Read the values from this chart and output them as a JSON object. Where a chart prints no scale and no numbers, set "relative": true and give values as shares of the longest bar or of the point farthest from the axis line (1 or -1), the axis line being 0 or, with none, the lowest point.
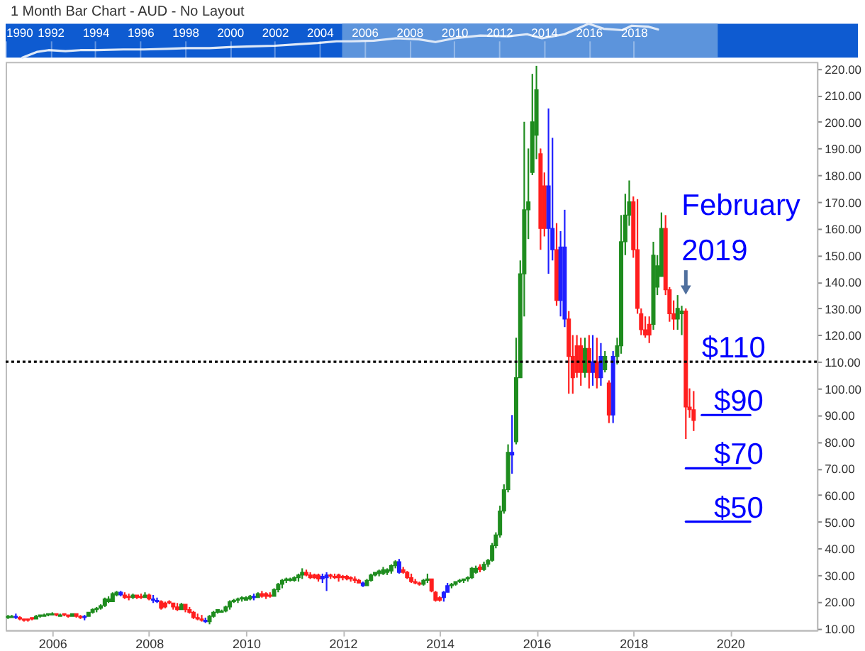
{
  "chart_data": [
    {
      "type": "line",
      "title": "1 Month Bar Chart - AUD - No Layout",
      "relative": true,
      "x": [
        "1990-10",
        "1991-06",
        "1991-12",
        "1992-09",
        "1993-05",
        "1994-02",
        "1995-04",
        "1996-03",
        "1997-03",
        "1998-02",
        "1999-02",
        "2000-01",
        "2001-01",
        "2002-01",
        "2002-12",
        "2003-12",
        "2004-10",
        "2005-06",
        "2006-06",
        "2007-06",
        "2008-06",
        "2009-03",
        "2010-01",
        "2011-03",
        "2012-06",
        "2013-04",
        "2013-12",
        "2014-12",
        "2015-06",
        "2016-01",
        "2016-09",
        "2017-07",
        "2017-12",
        "2018-09",
        "2019-02"
      ],
      "series": [
        {
          "color": "#dfe9f7",
          "values": [
            0,
            0.17,
            0.22,
            0.19,
            0.22,
            0.22,
            0.24,
            0.24,
            0.26,
            0.28,
            0.28,
            0.31,
            0.33,
            0.35,
            0.39,
            0.43,
            0.48,
            0.48,
            0.5,
            0.57,
            0.54,
            0.46,
            0.57,
            0.65,
            0.63,
            0.69,
            0.57,
            0.69,
            0.83,
            1,
            0.85,
            0.81,
            0.94,
            0.91,
            0.83
          ]
        }
      ],
      "xlim": [
        "1990-01",
        "2028-01"
      ],
      "xticks": [
        "1990",
        "1992",
        "1994",
        "1996",
        "1998",
        "2000",
        "2002",
        "2004",
        "2006",
        "2008",
        "2010",
        "2012",
        "2014",
        "2016",
        "2018"
      ],
      "bands": [
        {
          "axis": "x",
          "from": "2005-01",
          "to": "2021-10",
          "color": "#5c94dc"
        }
      ]
    },
    {
      "type": "candlestick",
      "x": [
        "2005-02",
        "2005-03",
        "2005-04",
        "2005-05",
        "2005-06",
        "2005-07",
        "2005-08",
        "2005-09",
        "2005-10",
        "2005-11",
        "2005-12",
        "2006-01",
        "2006-02",
        "2006-03",
        "2006-04",
        "2006-05",
        "2006-06",
        "2006-07",
        "2006-08",
        "2006-09",
        "2006-10",
        "2006-11",
        "2006-12",
        "2007-01",
        "2007-02",
        "2007-03",
        "2007-04",
        "2007-05",
        "2007-06",
        "2007-07",
        "2007-08",
        "2007-09",
        "2007-10",
        "2007-11",
        "2007-12",
        "2008-01",
        "2008-02",
        "2008-03",
        "2008-04",
        "2008-05",
        "2008-06",
        "2008-07",
        "2008-08",
        "2008-09",
        "2008-10",
        "2008-11",
        "2008-12",
        "2009-01",
        "2009-02",
        "2009-03",
        "2009-04",
        "2009-05",
        "2009-06",
        "2009-07",
        "2009-08",
        "2009-09",
        "2009-10",
        "2009-11",
        "2009-12",
        "2010-01",
        "2010-02",
        "2010-03",
        "2010-04",
        "2010-05",
        "2010-06",
        "2010-07",
        "2010-08",
        "2010-09",
        "2010-10",
        "2010-11",
        "2010-12",
        "2011-01",
        "2011-02",
        "2011-03",
        "2011-04",
        "2011-05",
        "2011-06",
        "2011-07",
        "2011-08",
        "2011-09",
        "2011-10",
        "2011-11",
        "2011-12",
        "2012-01",
        "2012-02",
        "2012-03",
        "2012-04",
        "2012-05",
        "2012-06",
        "2012-07",
        "2012-08",
        "2012-09",
        "2012-10",
        "2012-11",
        "2012-12",
        "2013-01",
        "2013-02",
        "2013-03",
        "2013-04",
        "2013-05",
        "2013-06",
        "2013-07",
        "2013-08",
        "2013-09",
        "2013-10",
        "2013-11",
        "2013-12",
        "2014-01",
        "2014-02",
        "2014-03",
        "2014-04",
        "2014-05",
        "2014-06",
        "2014-07",
        "2014-08",
        "2014-09",
        "2014-10",
        "2014-11",
        "2014-12",
        "2015-01",
        "2015-02",
        "2015-03",
        "2015-04",
        "2015-05",
        "2015-06",
        "2015-07",
        "2015-08",
        "2015-09",
        "2015-10",
        "2015-11",
        "2015-12",
        "2016-01",
        "2016-02",
        "2016-03",
        "2016-04",
        "2016-05",
        "2016-06",
        "2016-07",
        "2016-08",
        "2016-09",
        "2016-10",
        "2016-11",
        "2016-12",
        "2017-01",
        "2017-02",
        "2017-03",
        "2017-04",
        "2017-05",
        "2017-06",
        "2017-07",
        "2017-08",
        "2017-09",
        "2017-10",
        "2017-11",
        "2017-12",
        "2018-01",
        "2018-02",
        "2018-03",
        "2018-04",
        "2018-05",
        "2018-06",
        "2018-07",
        "2018-08",
        "2018-09",
        "2018-10",
        "2018-11",
        "2018-12",
        "2019-01",
        "2019-02",
        "2019-03",
        "2019-04"
      ],
      "ohlc": [
        [
          14,
          15,
          13.5,
          14.5
        ],
        [
          14,
          15,
          14,
          14.5
        ],
        [
          14.5,
          15.5,
          13.5,
          14
        ],
        [
          14,
          14.5,
          13,
          13.5
        ],
        [
          13.5,
          13.5,
          12.5,
          13
        ],
        [
          13.5,
          13.5,
          12.5,
          13
        ],
        [
          14,
          14,
          13,
          13.5
        ],
        [
          13.5,
          15,
          13.5,
          14.5
        ],
        [
          14.5,
          15,
          14,
          15
        ],
        [
          14.5,
          15.5,
          14.5,
          15
        ],
        [
          15,
          15.5,
          14.5,
          15.5
        ],
        [
          15,
          16,
          15,
          15.5
        ],
        [
          15.5,
          15.5,
          14.5,
          15
        ],
        [
          14.5,
          15.5,
          14.5,
          15
        ],
        [
          15.5,
          15.5,
          14.5,
          15
        ],
        [
          15,
          15,
          14,
          14.5
        ],
        [
          14.5,
          15.5,
          14.5,
          15.5
        ],
        [
          15.5,
          15.5,
          14,
          14.5
        ],
        [
          14.5,
          15,
          13.5,
          14
        ],
        [
          14.5,
          15,
          13,
          14
        ],
        [
          14.5,
          16,
          14.5,
          16
        ],
        [
          16,
          17.5,
          15.5,
          17
        ],
        [
          17,
          18,
          16,
          17.5
        ],
        [
          17.5,
          19,
          17,
          18.5
        ],
        [
          18.5,
          21.5,
          18,
          21
        ],
        [
          20,
          22,
          19.5,
          21
        ],
        [
          20,
          23.5,
          20,
          23
        ],
        [
          22.5,
          24,
          22,
          23.5
        ],
        [
          23.5,
          24,
          22,
          22.5
        ],
        [
          22.5,
          23.5,
          21,
          21.5
        ],
        [
          22,
          23,
          20.5,
          21.5
        ],
        [
          21.5,
          23,
          21,
          22.5
        ],
        [
          22.5,
          22.5,
          21,
          21.5
        ],
        [
          22,
          23,
          21,
          21.5
        ],
        [
          21.5,
          23.5,
          21.5,
          22.5
        ],
        [
          22.5,
          23,
          20.5,
          21
        ],
        [
          21,
          22.5,
          19.5,
          20.5
        ],
        [
          20.5,
          21.5,
          19.5,
          20
        ],
        [
          20,
          20.5,
          17,
          17.5
        ],
        [
          19.5,
          20,
          17.5,
          18
        ],
        [
          20,
          20.5,
          19,
          19.5
        ],
        [
          19.5,
          19.5,
          17,
          18
        ],
        [
          18,
          19.5,
          16.5,
          17
        ],
        [
          17,
          19.5,
          17,
          19
        ],
        [
          19,
          19,
          16,
          17
        ],
        [
          17,
          18,
          15.5,
          16
        ],
        [
          16,
          16.5,
          13.5,
          14
        ],
        [
          14,
          15.5,
          13,
          13.5
        ],
        [
          13.5,
          15,
          12.5,
          13
        ],
        [
          13,
          14,
          12,
          12.5
        ],
        [
          12.5,
          15,
          11.5,
          14.5
        ],
        [
          14.5,
          16.5,
          14,
          16
        ],
        [
          16,
          17,
          15.5,
          17
        ],
        [
          16,
          17,
          16,
          16.5
        ],
        [
          16.5,
          18.5,
          16,
          18
        ],
        [
          18,
          20.5,
          17,
          20
        ],
        [
          20,
          21,
          19.5,
          20.5
        ],
        [
          20.5,
          21.5,
          19.5,
          21
        ],
        [
          21,
          22,
          20,
          21.5
        ],
        [
          20.5,
          22,
          20.5,
          21.5
        ],
        [
          21,
          22.5,
          20.5,
          22
        ],
        [
          22,
          23,
          20.5,
          21.5
        ],
        [
          21.5,
          23.5,
          21.5,
          23
        ],
        [
          23,
          24,
          21.5,
          22
        ],
        [
          23,
          23.5,
          21,
          22
        ],
        [
          22.5,
          23.5,
          21.5,
          22
        ],
        [
          22,
          25,
          22,
          24.5
        ],
        [
          24.5,
          27,
          23.5,
          26.5
        ],
        [
          26.5,
          28.5,
          25,
          28
        ],
        [
          28,
          29,
          27,
          28.5
        ],
        [
          28,
          29,
          27.5,
          28.5
        ],
        [
          28,
          29.5,
          27.5,
          29
        ],
        [
          29,
          30.5,
          27.5,
          30
        ],
        [
          30,
          32.5,
          28.5,
          31
        ],
        [
          31,
          32,
          29.5,
          30
        ],
        [
          30,
          31,
          28.5,
          29
        ],
        [
          30,
          30.5,
          28.5,
          29
        ],
        [
          30,
          30.5,
          27.5,
          28.5
        ],
        [
          29.5,
          30.5,
          27,
          28.5
        ],
        [
          30,
          31,
          24,
          29
        ],
        [
          30,
          30.5,
          28.5,
          29.5
        ],
        [
          29.5,
          30.5,
          28.5,
          29
        ],
        [
          30,
          30.5,
          27.5,
          29
        ],
        [
          29.5,
          30,
          28,
          29
        ],
        [
          29.5,
          30,
          28,
          28.5
        ],
        [
          29,
          29.5,
          27.5,
          28.5
        ],
        [
          28.5,
          29.5,
          27,
          28
        ],
        [
          28,
          28.5,
          27,
          27
        ],
        [
          27,
          27.5,
          25.5,
          26
        ],
        [
          26,
          28.5,
          26,
          28
        ],
        [
          28,
          30.5,
          27.5,
          30
        ],
        [
          30,
          31,
          29.5,
          31
        ],
        [
          30.5,
          32,
          29.5,
          31.5
        ],
        [
          30.5,
          33,
          30,
          32
        ],
        [
          31,
          32.5,
          30,
          32
        ],
        [
          31.5,
          34,
          30.5,
          33.5
        ],
        [
          33.5,
          35.5,
          32.5,
          35
        ],
        [
          35,
          36,
          30.5,
          31
        ],
        [
          32,
          33,
          30.5,
          31
        ],
        [
          31,
          31.5,
          28.5,
          29
        ],
        [
          29,
          30.5,
          27,
          27.5
        ],
        [
          27.5,
          28.5,
          26.5,
          27
        ],
        [
          27,
          27.5,
          26,
          26.5
        ],
        [
          26.5,
          28.5,
          26,
          28
        ],
        [
          28,
          30.5,
          27,
          28.5
        ],
        [
          28.5,
          28.5,
          23.5,
          24
        ],
        [
          23.5,
          24,
          20,
          20.5
        ],
        [
          21.5,
          22,
          20,
          20.5
        ],
        [
          21.5,
          24,
          20,
          23.5
        ],
        [
          23.5,
          27,
          23.5,
          26
        ],
        [
          26,
          27,
          25,
          26.5
        ],
        [
          26.5,
          27.5,
          26,
          27.5
        ],
        [
          27.5,
          28.5,
          27,
          28
        ],
        [
          28,
          28.5,
          27,
          28.5
        ],
        [
          28.5,
          29.5,
          27.5,
          29
        ],
        [
          29,
          33,
          28.5,
          32.5
        ],
        [
          31,
          33.5,
          30.5,
          32.5
        ],
        [
          33,
          34,
          31,
          32
        ],
        [
          32,
          35,
          31.5,
          34
        ],
        [
          34,
          36,
          33,
          35.5
        ],
        [
          35.5,
          42,
          35,
          41
        ],
        [
          41,
          46,
          40,
          45
        ],
        [
          45,
          56,
          44,
          54
        ],
        [
          54,
          64,
          53,
          62
        ],
        [
          62,
          79,
          61,
          76
        ],
        [
          76,
          90,
          68,
          75
        ],
        [
          80,
          119,
          79,
          104
        ],
        [
          104,
          148,
          104,
          143
        ],
        [
          143,
          200,
          127,
          167
        ],
        [
          167,
          190,
          156,
          170
        ],
        [
          181,
          218,
          180,
          200
        ],
        [
          195,
          221,
          186,
          212
        ],
        [
          188,
          190,
          152,
          160
        ],
        [
          176,
          181,
          157,
          160
        ],
        [
          176,
          205,
          143,
          160
        ],
        [
          160,
          194,
          148,
          152
        ],
        [
          152,
          162,
          131,
          133
        ],
        [
          133,
          159,
          127,
          153
        ],
        [
          153,
          167,
          123,
          126
        ],
        [
          126,
          129,
          98,
          112
        ],
        [
          112,
          120,
          98,
          104
        ],
        [
          116,
          120,
          104,
          106
        ],
        [
          116,
          119,
          101,
          106
        ],
        [
          106,
          119,
          104,
          115
        ],
        [
          115,
          120,
          100,
          106
        ],
        [
          106,
          120,
          101,
          110
        ],
        [
          110,
          119,
          100,
          104
        ],
        [
          104,
          117,
          101,
          112
        ],
        [
          107,
          114,
          106,
          112
        ],
        [
          102,
          103,
          87,
          90
        ],
        [
          90,
          114,
          87,
          112
        ],
        [
          112,
          119,
          109,
          116
        ],
        [
          116,
          165,
          113,
          155
        ],
        [
          155,
          173,
          150,
          165
        ],
        [
          165,
          178,
          161,
          170
        ],
        [
          170,
          172,
          149,
          152
        ],
        [
          152,
          171,
          128,
          130
        ],
        [
          128,
          130,
          120,
          122
        ],
        [
          122,
          127,
          119,
          120
        ],
        [
          124,
          127,
          117,
          120
        ],
        [
          124,
          155,
          122,
          150
        ],
        [
          138,
          150,
          135,
          146
        ],
        [
          142,
          166,
          142,
          160
        ],
        [
          160,
          165,
          135,
          137
        ],
        [
          137,
          138,
          125,
          128
        ],
        [
          128,
          133,
          122,
          126
        ],
        [
          126,
          135,
          122,
          130
        ],
        [
          128,
          131,
          120,
          129
        ],
        [
          129,
          130,
          81,
          93
        ],
        [
          93,
          100,
          89,
          92
        ],
        [
          92,
          99,
          84,
          88
        ]
      ],
      "colors": [
        "#1e8c1e",
        "#1e8c1e",
        "#1e1eff",
        "#ff1e1e",
        "#ff1e1e",
        "#ff1e1e",
        "#ff1e1e",
        "#1e8c1e",
        "#1e8c1e",
        "#1e8c1e",
        "#1e8c1e",
        "#1e8c1e",
        "#ff1e1e",
        "#1e8c1e",
        "#ff1e1e",
        "#ff1e1e",
        "#1e8c1e",
        "#ff1e1e",
        "#ff1e1e",
        "#1e1eff",
        "#1e8c1e",
        "#1e8c1e",
        "#1e8c1e",
        "#1e8c1e",
        "#1e8c1e",
        "#1e8c1e",
        "#1e8c1e",
        "#1e8c1e",
        "#1e1eff",
        "#ff1e1e",
        "#ff1e1e",
        "#1e8c1e",
        "#ff1e1e",
        "#ff1e1e",
        "#1e8c1e",
        "#ff1e1e",
        "#1e1eff",
        "#1e1eff",
        "#ff1e1e",
        "#ff1e1e",
        "#ff1e1e",
        "#ff1e1e",
        "#ff1e1e",
        "#1e8c1e",
        "#ff1e1e",
        "#ff1e1e",
        "#ff1e1e",
        "#ff1e1e",
        "#ff1e1e",
        "#1e1eff",
        "#1e8c1e",
        "#1e8c1e",
        "#1e8c1e",
        "#1e8c1e",
        "#1e8c1e",
        "#1e8c1e",
        "#1e8c1e",
        "#1e8c1e",
        "#1e8c1e",
        "#1e8c1e",
        "#1e8c1e",
        "#1e1eff",
        "#1e8c1e",
        "#ff1e1e",
        "#ff1e1e",
        "#ff1e1e",
        "#1e8c1e",
        "#1e8c1e",
        "#1e8c1e",
        "#1e8c1e",
        "#1e8c1e",
        "#1e8c1e",
        "#1e8c1e",
        "#1e8c1e",
        "#ff1e1e",
        "#ff1e1e",
        "#ff1e1e",
        "#ff1e1e",
        "#1e1eff",
        "#1e1eff",
        "#ff1e1e",
        "#ff1e1e",
        "#ff1e1e",
        "#ff1e1e",
        "#ff1e1e",
        "#ff1e1e",
        "#ff1e1e",
        "#ff1e1e",
        "#1e1eff",
        "#1e8c1e",
        "#1e8c1e",
        "#1e8c1e",
        "#1e8c1e",
        "#1e8c1e",
        "#1e8c1e",
        "#1e8c1e",
        "#1e8c1e",
        "#1e1eff",
        "#ff1e1e",
        "#ff1e1e",
        "#ff1e1e",
        "#ff1e1e",
        "#ff1e1e",
        "#1e8c1e",
        "#1e8c1e",
        "#ff1e1e",
        "#ff1e1e",
        "#ff1e1e",
        "#1e1eff",
        "#1e1eff",
        "#1e8c1e",
        "#1e8c1e",
        "#1e8c1e",
        "#1e8c1e",
        "#1e8c1e",
        "#1e8c1e",
        "#1e8c1e",
        "#ff1e1e",
        "#1e8c1e",
        "#1e8c1e",
        "#1e8c1e",
        "#1e8c1e",
        "#1e8c1e",
        "#1e8c1e",
        "#1e8c1e",
        "#1e1eff",
        "#1e8c1e",
        "#1e8c1e",
        "#1e8c1e",
        "#1e8c1e",
        "#1e8c1e",
        "#1e8c1e",
        "#ff1e1e",
        "#ff1e1e",
        "#1e1eff",
        "#1e1eff",
        "#ff1e1e",
        "#1e1eff",
        "#1e1eff",
        "#ff1e1e",
        "#ff1e1e",
        "#ff1e1e",
        "#ff1e1e",
        "#1e8c1e",
        "#ff1e1e",
        "#1e1eff",
        "#ff1e1e",
        "#1e1eff",
        "#1e8c1e",
        "#ff1e1e",
        "#1e1eff",
        "#1e8c1e",
        "#1e8c1e",
        "#1e8c1e",
        "#1e8c1e",
        "#ff1e1e",
        "#ff1e1e",
        "#ff1e1e",
        "#ff1e1e",
        "#ff1e1e",
        "#1e8c1e",
        "#1e8c1e",
        "#1e8c1e",
        "#ff1e1e",
        "#ff1e1e",
        "#ff1e1e",
        "#1e8c1e",
        "#1e8c1e",
        "#ff1e1e",
        "#ff1e1e",
        "#ff1e1e"
      ],
      "series": [
        {
          "type": "line",
          "color": "#0000ff",
          "x": [
            "2019-06",
            "2020-06"
          ],
          "values": [
            90,
            90
          ]
        },
        {
          "type": "line",
          "color": "#0000ff",
          "x": [
            "2019-02",
            "2020-06"
          ],
          "values": [
            70,
            70
          ]
        },
        {
          "type": "line",
          "color": "#0000ff",
          "x": [
            "2019-02",
            "2020-06"
          ],
          "values": [
            50,
            50
          ]
        }
      ],
      "xlim": [
        "2005-01-14",
        "2021-10-17"
      ],
      "xticks": [
        "2006",
        "2008",
        "2010",
        "2012",
        "2014",
        "2016",
        "2018",
        "2020"
      ],
      "ylim": [
        9.3,
        222.5
      ],
      "yticks": [
        {
          "value": 10,
          "label": "10.00"
        },
        {
          "value": 20,
          "label": "20.00"
        },
        {
          "value": 30,
          "label": "30.00"
        },
        {
          "value": 40,
          "label": "40.00"
        },
        {
          "value": 50,
          "label": "50.00"
        },
        {
          "value": 60,
          "label": "60.00"
        },
        {
          "value": 70,
          "label": "70.00"
        },
        {
          "value": 80,
          "label": "80.00"
        },
        {
          "value": 90,
          "label": "90.00"
        },
        {
          "value": 100,
          "label": "100.00"
        },
        {
          "value": 110,
          "label": "110.00"
        },
        {
          "value": 120,
          "label": "120.00"
        },
        {
          "value": 130,
          "label": "130.00"
        },
        {
          "value": 140,
          "label": "140.00"
        },
        {
          "value": 150,
          "label": "150.00"
        },
        {
          "value": 160,
          "label": "160.00"
        },
        {
          "value": 170,
          "label": "170.00"
        },
        {
          "value": 180,
          "label": "180.00"
        },
        {
          "value": 190,
          "label": "190.00"
        },
        {
          "value": 200,
          "label": "200.00"
        },
        {
          "value": 210,
          "label": "210.00"
        },
        {
          "value": 220,
          "label": "220.00"
        }
      ],
      "ref_lines": [
        {
          "axis": "y",
          "value": 110,
          "color": "#000000",
          "line_style": "dotted"
        }
      ],
      "annotations": [
        {
          "text": "February 2019",
          "x": "2019-02",
          "y": 130
        },
        {
          "text": "$110",
          "x": "2019-06",
          "y": 110
        },
        {
          "text": "$90",
          "x": "2019-09",
          "y": 90
        },
        {
          "text": "$70",
          "x": "2019-09",
          "y": 70
        },
        {
          "text": "$50",
          "x": "2019-09",
          "y": 50
        }
      ]
    }
  ]
}
